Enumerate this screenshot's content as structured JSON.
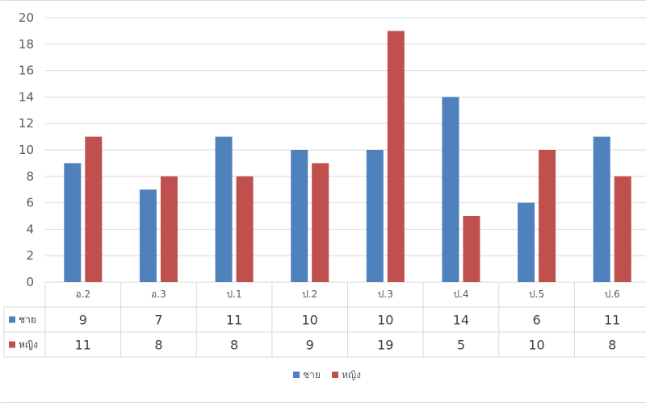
{
  "chart_data": {
    "type": "bar",
    "categories": [
      "อ.2",
      "อ.3",
      "ป.1",
      "ป.2",
      "ป.3",
      "ป.4",
      "ป.5",
      "ป.6"
    ],
    "series": [
      {
        "name": "ชาย",
        "color": "#4f81bd",
        "values": [
          9,
          7,
          11,
          10,
          10,
          14,
          6,
          11
        ]
      },
      {
        "name": "หญิง",
        "color": "#c0504d",
        "values": [
          11,
          8,
          8,
          9,
          19,
          5,
          10,
          8
        ]
      }
    ],
    "ylim": [
      0,
      20
    ],
    "yticks": [
      0,
      2,
      4,
      6,
      8,
      10,
      12,
      14,
      16,
      18,
      20
    ],
    "grid": true,
    "data_table": true,
    "legend": "bottom"
  }
}
